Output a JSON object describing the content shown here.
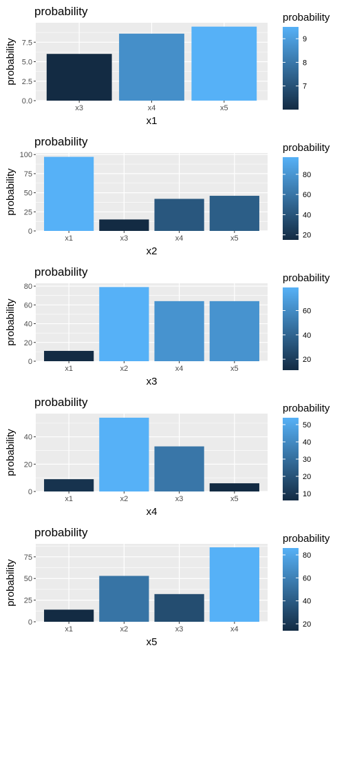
{
  "chart_data": [
    {
      "type": "bar",
      "title": "probability",
      "xlabel": "x1",
      "ylabel": "probability",
      "categories": [
        "x3",
        "x4",
        "x5"
      ],
      "values": [
        6.0,
        8.6,
        9.5
      ],
      "ylim": [
        0,
        10
      ],
      "yticks": [
        0.0,
        2.5,
        5.0,
        7.5
      ],
      "ytick_labels": [
        "0.0",
        "2.5",
        "5.0",
        "7.5"
      ],
      "legend": {
        "title": "probability",
        "min": 6.0,
        "max": 9.5,
        "ticks": [
          7,
          8,
          9
        ],
        "tick_labels": [
          "7",
          "8",
          "9"
        ],
        "position": "right"
      },
      "grid": true
    },
    {
      "type": "bar",
      "title": "probability",
      "xlabel": "x2",
      "ylabel": "probability",
      "categories": [
        "x1",
        "x3",
        "x4",
        "x5"
      ],
      "values": [
        97,
        15,
        42,
        46
      ],
      "ylim": [
        0,
        102
      ],
      "yticks": [
        0,
        25,
        50,
        75,
        100
      ],
      "ytick_labels": [
        "0",
        "25",
        "50",
        "75",
        "100"
      ],
      "legend": {
        "title": "probability",
        "min": 15,
        "max": 97,
        "ticks": [
          20,
          40,
          60,
          80
        ],
        "tick_labels": [
          "20",
          "40",
          "60",
          "80"
        ],
        "position": "right"
      },
      "grid": true
    },
    {
      "type": "bar",
      "title": "probability",
      "xlabel": "x3",
      "ylabel": "probability",
      "categories": [
        "x1",
        "x2",
        "x4",
        "x5"
      ],
      "values": [
        11,
        79,
        64,
        64
      ],
      "ylim": [
        0,
        83
      ],
      "yticks": [
        0,
        20,
        40,
        60,
        80
      ],
      "ytick_labels": [
        "0",
        "20",
        "40",
        "60",
        "80"
      ],
      "legend": {
        "title": "probability",
        "min": 11,
        "max": 79,
        "ticks": [
          20,
          40,
          60
        ],
        "tick_labels": [
          "20",
          "40",
          "60"
        ],
        "position": "right"
      },
      "grid": true
    },
    {
      "type": "bar",
      "title": "probability",
      "xlabel": "x4",
      "ylabel": "probability",
      "categories": [
        "x1",
        "x2",
        "x3",
        "x5"
      ],
      "values": [
        9,
        54,
        33,
        6
      ],
      "ylim": [
        0,
        57
      ],
      "yticks": [
        0,
        20,
        40
      ],
      "ytick_labels": [
        "0",
        "20",
        "40"
      ],
      "legend": {
        "title": "probability",
        "min": 6,
        "max": 54,
        "ticks": [
          10,
          20,
          30,
          40,
          50
        ],
        "tick_labels": [
          "10",
          "20",
          "30",
          "40",
          "50"
        ],
        "position": "right"
      },
      "grid": true
    },
    {
      "type": "bar",
      "title": "probability",
      "xlabel": "x5",
      "ylabel": "probability",
      "categories": [
        "x1",
        "x2",
        "x3",
        "x4"
      ],
      "values": [
        14,
        53,
        32,
        86
      ],
      "ylim": [
        0,
        90
      ],
      "yticks": [
        0,
        25,
        50,
        75
      ],
      "ytick_labels": [
        "0",
        "25",
        "50",
        "75"
      ],
      "legend": {
        "title": "probability",
        "min": 14,
        "max": 86,
        "ticks": [
          20,
          40,
          60,
          80
        ],
        "tick_labels": [
          "20",
          "40",
          "60",
          "80"
        ],
        "position": "right"
      },
      "grid": true
    }
  ],
  "colors": {
    "low": "#132B43",
    "high": "#56B1F7",
    "panel": "#EBEBEB",
    "grid": "#FFFFFF"
  }
}
